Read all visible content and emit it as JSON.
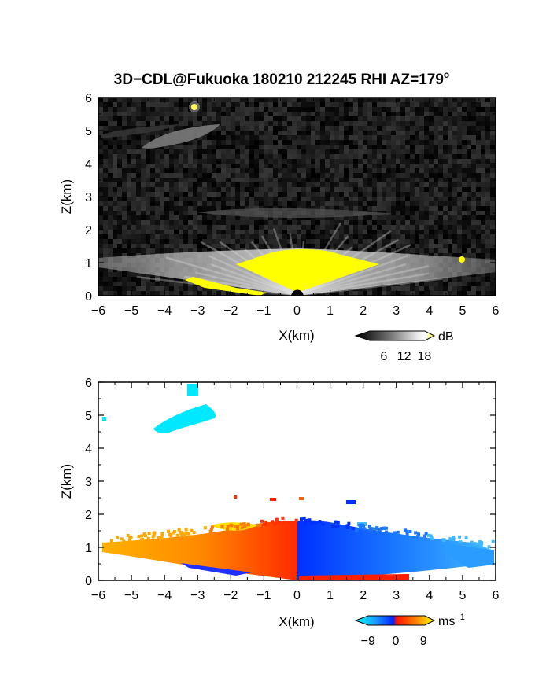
{
  "title": "3D−CDL@Fukuoka 180210 212245 RHI AZ=179",
  "title_superscript": "o",
  "chart_data": [
    {
      "type": "heatmap",
      "quantity": "reflectivity",
      "xlabel": "X(km)",
      "ylabel": "Z(km)",
      "xlim": [
        -6,
        6
      ],
      "ylim": [
        0,
        6
      ],
      "xticks": [
        "−6",
        "−5",
        "−4",
        "−3",
        "−2",
        "−1",
        "0",
        "1",
        "2",
        "3",
        "4",
        "5",
        "6"
      ],
      "yticks": [
        "0",
        "1",
        "2",
        "3",
        "4",
        "5",
        "6"
      ],
      "background": "black",
      "colorbar": {
        "label": "dB",
        "ticks": [
          "6",
          "12",
          "18"
        ],
        "values": [
          6,
          12,
          18
        ],
        "range": [
          0,
          20
        ],
        "colors": [
          "#000000",
          "#ffffff",
          "#ffff00"
        ]
      }
    },
    {
      "type": "heatmap",
      "quantity": "doppler velocity",
      "xlabel": "X(km)",
      "ylabel": "Z(km)",
      "xlim": [
        -6,
        6
      ],
      "ylim": [
        0,
        6
      ],
      "xticks": [
        "−6",
        "−5",
        "−4",
        "−3",
        "−2",
        "−1",
        "0",
        "1",
        "2",
        "3",
        "4",
        "5",
        "6"
      ],
      "yticks": [
        "0",
        "1",
        "2",
        "3",
        "4",
        "5",
        "6"
      ],
      "background": "white",
      "colorbar": {
        "label": "ms",
        "label_superscript": "−1",
        "ticks": [
          "−9",
          "0",
          "9"
        ],
        "values": [
          -9,
          0,
          9
        ],
        "range": [
          -12,
          12
        ],
        "colors": [
          "#00ffff",
          "#0000ff",
          "#ff0000",
          "#ffff00"
        ]
      }
    }
  ]
}
